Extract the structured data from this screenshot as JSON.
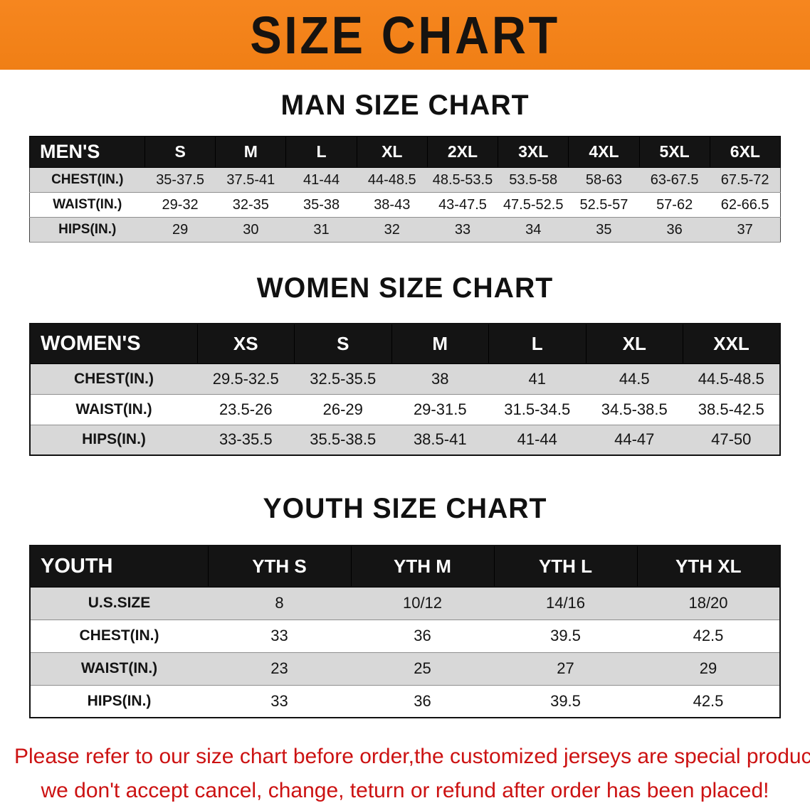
{
  "banner": {
    "title": "SIZE CHART"
  },
  "men": {
    "heading": "MAN SIZE CHART",
    "corner": "MEN'S",
    "columns": [
      "S",
      "M",
      "L",
      "XL",
      "2XL",
      "3XL",
      "4XL",
      "5XL",
      "6XL"
    ],
    "rows": [
      {
        "label": "CHEST(IN.)",
        "values": [
          "35-37.5",
          "37.5-41",
          "41-44",
          "44-48.5",
          "48.5-53.5",
          "53.5-58",
          "58-63",
          "63-67.5",
          "67.5-72"
        ]
      },
      {
        "label": "WAIST(IN.)",
        "values": [
          "29-32",
          "32-35",
          "35-38",
          "38-43",
          "43-47.5",
          "47.5-52.5",
          "52.5-57",
          "57-62",
          "62-66.5"
        ]
      },
      {
        "label": "HIPS(IN.)",
        "values": [
          "29",
          "30",
          "31",
          "32",
          "33",
          "34",
          "35",
          "36",
          "37"
        ]
      }
    ]
  },
  "women": {
    "heading": "WOMEN SIZE CHART",
    "corner": "WOMEN'S",
    "columns": [
      "XS",
      "S",
      "M",
      "L",
      "XL",
      "XXL"
    ],
    "rows": [
      {
        "label": "CHEST(IN.)",
        "values": [
          "29.5-32.5",
          "32.5-35.5",
          "38",
          "41",
          "44.5",
          "44.5-48.5"
        ]
      },
      {
        "label": "WAIST(IN.)",
        "values": [
          "23.5-26",
          "26-29",
          "29-31.5",
          "31.5-34.5",
          "34.5-38.5",
          "38.5-42.5"
        ]
      },
      {
        "label": "HIPS(IN.)",
        "values": [
          "33-35.5",
          "35.5-38.5",
          "38.5-41",
          "41-44",
          "44-47",
          "47-50"
        ]
      }
    ]
  },
  "youth": {
    "heading": "YOUTH SIZE CHART",
    "corner": "YOUTH",
    "columns": [
      "YTH S",
      "YTH M",
      "YTH L",
      "YTH XL"
    ],
    "rows": [
      {
        "label": "U.S.SIZE",
        "values": [
          "8",
          "10/12",
          "14/16",
          "18/20"
        ]
      },
      {
        "label": "CHEST(IN.)",
        "values": [
          "33",
          "36",
          "39.5",
          "42.5"
        ]
      },
      {
        "label": "WAIST(IN.)",
        "values": [
          "23",
          "25",
          "27",
          "29"
        ]
      },
      {
        "label": "HIPS(IN.)",
        "values": [
          "33",
          "36",
          "39.5",
          "42.5"
        ]
      }
    ]
  },
  "disclaimer": {
    "line1": "Please refer to our size chart before order,the customized jerseys are special products,",
    "line2": "we don't accept cancel, change, teturn or refund after order has been placed!"
  },
  "colors": {
    "banner_bg": "#f6861f",
    "header_bg": "#141414",
    "stripe_bg": "#d8d8d8",
    "disclaimer_red": "#cc1212"
  }
}
